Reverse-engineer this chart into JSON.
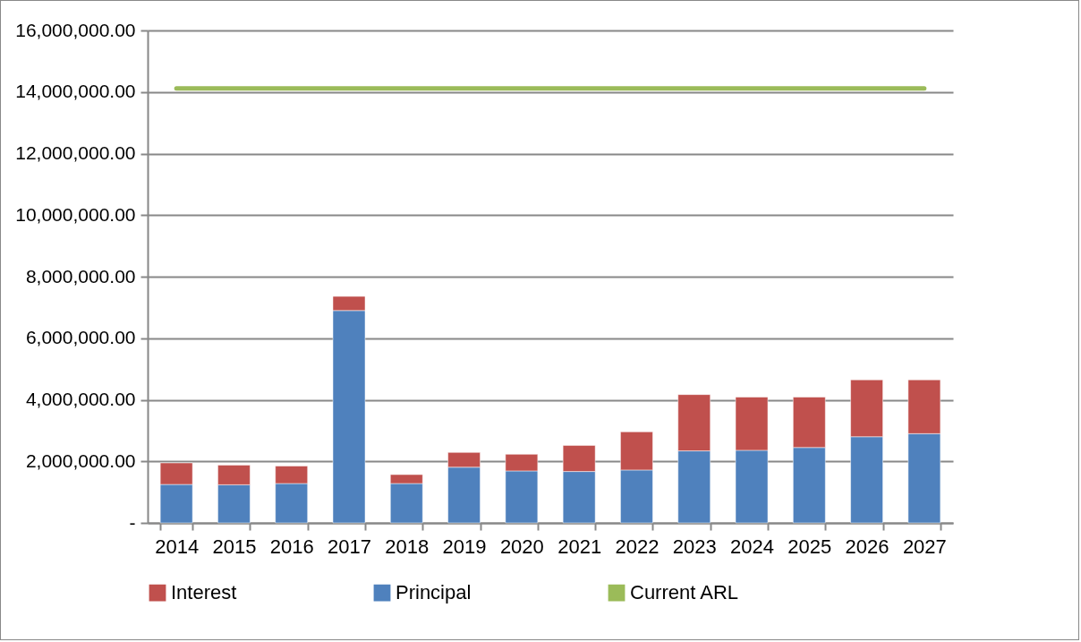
{
  "chart_data": {
    "type": "bar",
    "stacked": true,
    "categories": [
      "2014",
      "2015",
      "2016",
      "2017",
      "2018",
      "2019",
      "2020",
      "2021",
      "2022",
      "2023",
      "2024",
      "2025",
      "2026",
      "2027"
    ],
    "series": [
      {
        "name": "Principal",
        "color": "#4f81bd",
        "values": [
          1250000,
          1240000,
          1280000,
          6900000,
          1280000,
          1810000,
          1690000,
          1670000,
          1720000,
          2340000,
          2360000,
          2450000,
          2800000,
          2900000
        ]
      },
      {
        "name": "Interest",
        "color": "#c0504d",
        "values": [
          700000,
          640000,
          570000,
          460000,
          290000,
          480000,
          540000,
          850000,
          1240000,
          1830000,
          1730000,
          1640000,
          1850000,
          1750000
        ]
      },
      {
        "name": "Current ARL",
        "type": "line",
        "color": "#9bbb59",
        "values": [
          14120000,
          14120000,
          14120000,
          14120000,
          14120000,
          14120000,
          14120000,
          14120000,
          14120000,
          14120000,
          14120000,
          14120000,
          14120000,
          14120000
        ]
      }
    ],
    "ylim": [
      0,
      16000000
    ],
    "yticks": [
      {
        "value": 0,
        "label": "-"
      },
      {
        "value": 2000000,
        "label": "2,000,000.00"
      },
      {
        "value": 4000000,
        "label": "4,000,000.00"
      },
      {
        "value": 6000000,
        "label": "6,000,000.00"
      },
      {
        "value": 8000000,
        "label": "8,000,000.00"
      },
      {
        "value": 10000000,
        "label": "10,000,000.00"
      },
      {
        "value": 12000000,
        "label": "12,000,000.00"
      },
      {
        "value": 14000000,
        "label": "14,000,000.00"
      },
      {
        "value": 16000000,
        "label": "16,000,000.00"
      }
    ],
    "grid": "y",
    "legend": "bottom"
  }
}
